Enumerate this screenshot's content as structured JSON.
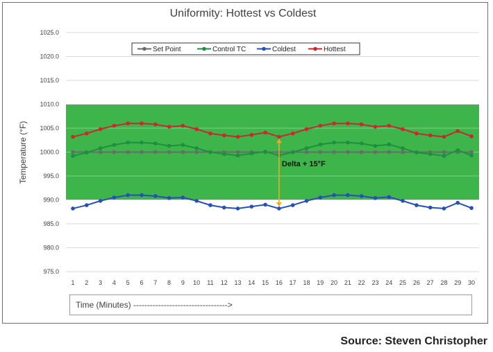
{
  "source_text": "Source: Steven Christopher",
  "chart_data": {
    "type": "line",
    "title": "Uniformity: Hottest vs Coldest",
    "ylabel": "Temperature (°F)",
    "xlabel": "Time (Minutes) ---------------------------------->",
    "ylim": [
      975,
      1025
    ],
    "y_ticks": [
      "975.0",
      "980.0",
      "985.0",
      "990.0",
      "995.0",
      "1000.0",
      "1005.0",
      "1010.0",
      "1015.0",
      "1020.0",
      "1025.0"
    ],
    "x": [
      1,
      2,
      3,
      4,
      5,
      6,
      7,
      8,
      9,
      10,
      11,
      12,
      13,
      14,
      15,
      16,
      17,
      18,
      19,
      20,
      21,
      22,
      23,
      24,
      25,
      26,
      27,
      28,
      29,
      30
    ],
    "grid": true,
    "legend_position": "top",
    "band": {
      "from": 990,
      "to": 1010,
      "color": "#3db54a"
    },
    "annotation": {
      "text": "Delta + 15°F",
      "x": 16,
      "y_top": 1003.2,
      "y_bottom": 988.2,
      "color": "#f4a81d"
    },
    "series": [
      {
        "name": "Set Point",
        "color": "#6b6b6b",
        "values": [
          1000,
          1000,
          1000,
          1000,
          1000,
          1000,
          1000,
          1000,
          1000,
          1000,
          1000,
          1000,
          1000,
          1000,
          1000,
          1000,
          1000,
          1000,
          1000,
          1000,
          1000,
          1000,
          1000,
          1000,
          1000,
          1000,
          1000,
          1000,
          1000,
          1000
        ]
      },
      {
        "name": "Control TC",
        "color": "#1e8f3e",
        "values": [
          999.2,
          999.9,
          1000.8,
          1001.5,
          1002.0,
          1002.0,
          1001.8,
          1001.3,
          1001.5,
          1000.8,
          1000.0,
          999.6,
          999.3,
          999.7,
          1000.1,
          999.3,
          1000.0,
          1000.8,
          1001.6,
          1002.0,
          1002.0,
          1001.8,
          1001.3,
          1001.6,
          1000.8,
          999.9,
          999.6,
          999.2,
          1000.4,
          999.3
        ]
      },
      {
        "name": "Coldest",
        "color": "#2650b8",
        "values": [
          988.2,
          988.9,
          989.8,
          990.5,
          991.0,
          991.0,
          990.8,
          990.4,
          990.5,
          989.8,
          988.9,
          988.4,
          988.2,
          988.6,
          989.0,
          988.2,
          988.9,
          989.8,
          990.5,
          991.0,
          991.0,
          990.8,
          990.4,
          990.6,
          989.8,
          988.9,
          988.4,
          988.2,
          989.4,
          988.3
        ]
      },
      {
        "name": "Hottest",
        "color": "#c8282e",
        "values": [
          1003.2,
          1003.9,
          1004.8,
          1005.5,
          1006.0,
          1006.0,
          1005.8,
          1005.3,
          1005.5,
          1004.8,
          1003.9,
          1003.5,
          1003.2,
          1003.6,
          1004.1,
          1003.2,
          1003.9,
          1004.8,
          1005.5,
          1006.0,
          1006.0,
          1005.8,
          1005.3,
          1005.5,
          1004.8,
          1003.9,
          1003.5,
          1003.2,
          1004.4,
          1003.3
        ]
      }
    ]
  }
}
